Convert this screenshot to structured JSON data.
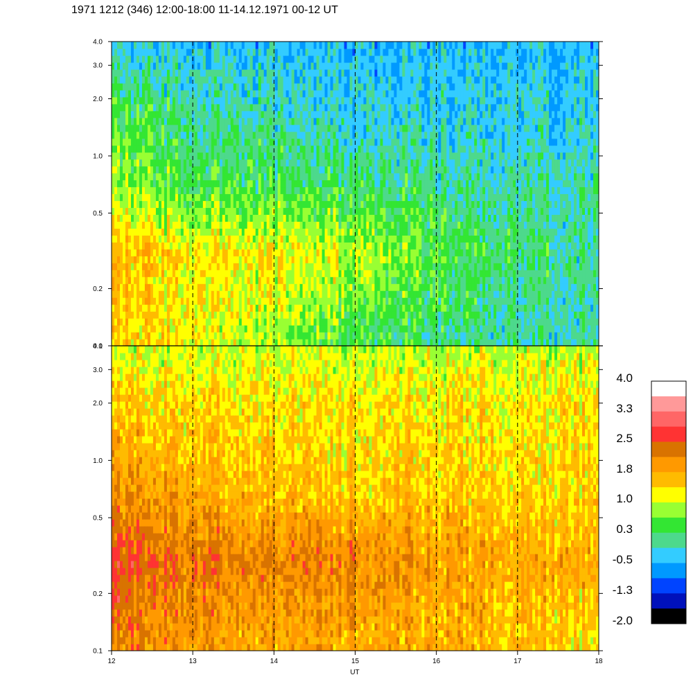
{
  "title": "1971 1212 (346) 12:00-18:00 11-14.12.1971  00-12  UT",
  "chart_data": {
    "type": "heatmap",
    "xlabel": "UT",
    "x_ticks": [
      "12",
      "13",
      "14",
      "15",
      "16",
      "17",
      "18"
    ],
    "xlim": [
      12,
      18
    ],
    "ylim": [
      0.1,
      4.0
    ],
    "y_scale": "log",
    "y_ticks": [
      {
        "value": 0.1,
        "label": "0.1"
      },
      {
        "value": 0.2,
        "label": "0.2"
      },
      {
        "value": 0.5,
        "label": "0.5"
      },
      {
        "value": 1.0,
        "label": "1.0"
      },
      {
        "value": 2.0,
        "label": "2.0"
      },
      {
        "value": 3.0,
        "label": "3.0"
      },
      {
        "value": 4.0,
        "label": "4.0"
      }
    ],
    "vertical_dashed_lines_at": [
      13,
      14,
      15,
      16,
      17
    ],
    "colorbar": {
      "tick_labels": [
        "4.0",
        "3.3",
        "2.5",
        "1.8",
        "1.0",
        "0.3",
        "-0.5",
        "-1.3",
        "-2.0"
      ],
      "colors": [
        "#ffffff",
        "#ff9999",
        "#ff6666",
        "#ff3333",
        "#d97300",
        "#ff9900",
        "#ffbb00",
        "#ffff00",
        "#99ff33",
        "#33e633",
        "#4dd98c",
        "#33ccff",
        "#0099ff",
        "#0044ff",
        "#0011bb",
        "#000000"
      ]
    },
    "panels": [
      {
        "name": "upper",
        "description_values": {
          "low_freq_band": "mostly 0.3 to 1.0 (yellow-green), orange near 12.2-12.4 UT",
          "high_freq_band": "around -0.5 to 0.3 (cyan-green)"
        },
        "rows": [
          {
            "y": 0.12,
            "values": [
              1.4,
              1.2,
              0.8,
              0.4,
              0.2,
              0.0,
              -0.1
            ]
          },
          {
            "y": 0.3,
            "values": [
              1.6,
              1.3,
              1.2,
              1.0,
              0.5,
              0.2,
              0.0
            ]
          },
          {
            "y": 0.7,
            "values": [
              0.8,
              0.4,
              0.3,
              0.2,
              0.1,
              0.0,
              0.0
            ]
          },
          {
            "y": 2.0,
            "values": [
              0.3,
              0.0,
              -0.2,
              -0.3,
              -0.3,
              -0.3,
              -0.3
            ]
          },
          {
            "y": 3.8,
            "values": [
              -0.3,
              -0.4,
              -0.4,
              -0.4,
              -0.4,
              -0.4,
              -0.4
            ]
          }
        ]
      },
      {
        "name": "lower",
        "description_values": {
          "low_freq_band": "mostly 1.8 to 2.5 (orange), red near 12.3-12.4 UT",
          "high_freq_band": "around 1.0 to 1.8 (yellow-orange)"
        },
        "rows": [
          {
            "y": 0.12,
            "values": [
              2.2,
              1.9,
              1.8,
              1.8,
              1.7,
              1.6,
              1.3
            ]
          },
          {
            "y": 0.3,
            "values": [
              2.6,
              2.3,
              2.2,
              2.2,
              1.9,
              1.8,
              1.7
            ]
          },
          {
            "y": 0.7,
            "values": [
              2.0,
              1.7,
              1.6,
              1.5,
              1.5,
              1.4,
              1.4
            ]
          },
          {
            "y": 2.0,
            "values": [
              1.5,
              1.4,
              1.3,
              1.3,
              1.3,
              1.3,
              1.3
            ]
          },
          {
            "y": 3.8,
            "values": [
              1.1,
              1.0,
              1.0,
              1.0,
              1.0,
              1.0,
              1.0
            ]
          }
        ]
      }
    ]
  }
}
